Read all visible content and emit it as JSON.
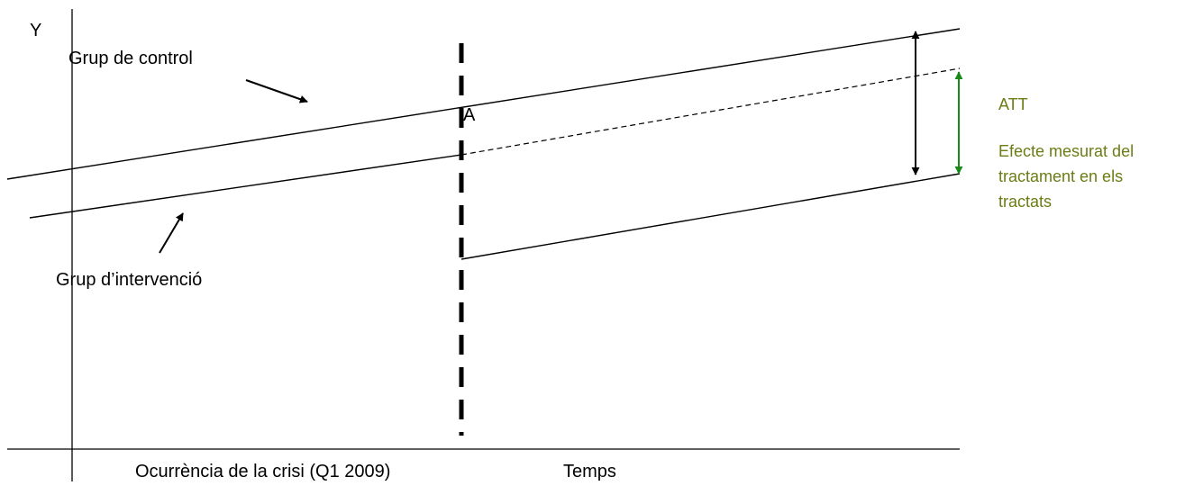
{
  "labels": {
    "y_axis": "Y",
    "control_group": "Grup de control",
    "intervention_group": "Grup d’intervenció",
    "point_a": "A",
    "crisis": "Ocurrència de la crisi (Q1 2009)",
    "time": "Temps",
    "att": "ATT",
    "effect_line1": "Efecte mesurat del",
    "effect_line2": "tractament en els",
    "effect_line3": "tractats"
  },
  "colors": {
    "line": "#000000",
    "effect_arrow": "#1a8a1a",
    "right_text": "#6b7d14"
  }
}
